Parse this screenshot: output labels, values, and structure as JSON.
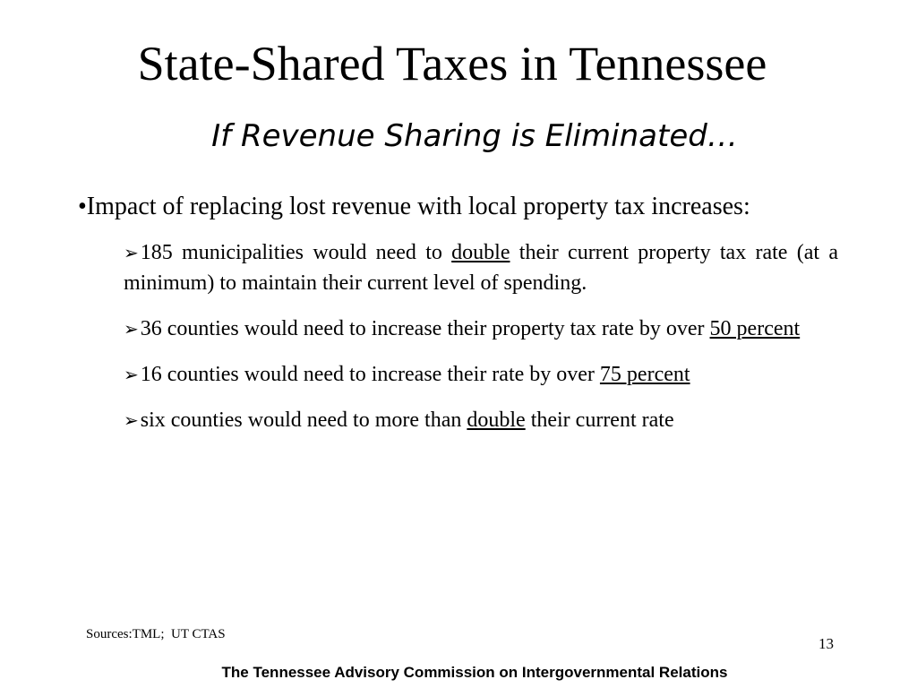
{
  "slide": {
    "title": "State-Shared Taxes in Tennessee",
    "subtitle": "If Revenue Sharing is Eliminated…",
    "main_bullet": "•Impact of replacing lost revenue with local property tax increases:",
    "sub_bullets": [
      {
        "pre": "185 municipalities would need to ",
        "emph": "double",
        "post": " their current property tax rate (at a minimum) to maintain their current level of spending."
      },
      {
        "pre": "36 counties would need to increase their property tax rate by over ",
        "emph": "50 percent",
        "post": ""
      },
      {
        "pre": "16 counties would need to increase their rate by over ",
        "emph": "75 percent",
        "post": ""
      },
      {
        "pre": "six counties would need to more than ",
        "emph": "double",
        "post": " their current rate"
      }
    ],
    "bullet_icon": "arrow-bullet-icon",
    "sources": "Sources:TML;  UT CTAS",
    "page_number": "13",
    "footer": "The Tennessee Advisory Commission on Intergovernmental Relations"
  }
}
